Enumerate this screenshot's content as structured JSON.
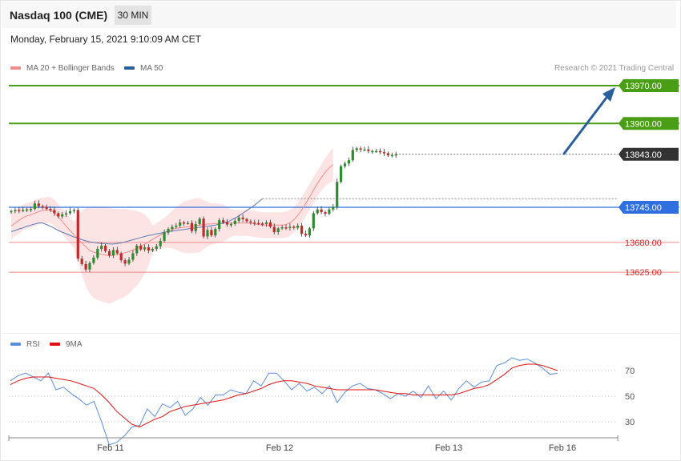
{
  "header": {
    "title": "Nasdaq 100 (CME)",
    "timeframe": "30 MIN"
  },
  "datetime": "Monday, February 15, 2021 9:10:09 AM CET",
  "legend_main": {
    "ma20_label": "MA 20 + Bollinger Bands",
    "ma50_label": "MA 50",
    "ma20_color": "#f48b8b",
    "ma50_color": "#2a5f9e"
  },
  "credit": "Research © 2021 Trading Central",
  "legend_rsi": {
    "rsi_label": "RSI",
    "ma9_label": "9MA",
    "rsi_color": "#5b8de0",
    "ma9_color": "#e01010"
  },
  "chart_data": [
    {
      "type": "line",
      "title": "",
      "x_ticks": [
        "Feb 11",
        "Feb 12",
        "Feb 13",
        "Feb 16"
      ],
      "ylim": [
        13540,
        13985
      ],
      "current_price": 13843.0,
      "levels": [
        {
          "value": 13970.0,
          "label": "13970.00",
          "kind": "resistance",
          "color": "#4a9e16"
        },
        {
          "value": 13900.0,
          "label": "13900.00",
          "kind": "resistance",
          "color": "#4a9e16"
        },
        {
          "value": 13843.0,
          "label": "13843.00",
          "kind": "last",
          "color": "#333333"
        },
        {
          "value": 13745.0,
          "label": "13745.00",
          "kind": "pivot",
          "color": "#2f6fe0"
        },
        {
          "value": 13680.0,
          "label": "13680.00",
          "kind": "support",
          "color": "#e02020"
        },
        {
          "value": 13625.0,
          "label": "13625.00",
          "kind": "support",
          "color": "#e02020"
        }
      ],
      "close": [
        13738,
        13740,
        13739,
        13740,
        13741,
        13742,
        13752,
        13747,
        13746,
        13742,
        13740,
        13734,
        13728,
        13732,
        13734,
        13738,
        13740,
        13650,
        13640,
        13630,
        13642,
        13652,
        13668,
        13674,
        13664,
        13656,
        13666,
        13660,
        13647,
        13641,
        13648,
        13660,
        13674,
        13667,
        13671,
        13665,
        13668,
        13673,
        13683,
        13698,
        13705,
        13709,
        13711,
        13717,
        13716,
        13716,
        13701,
        13714,
        13724,
        13691,
        13703,
        13693,
        13705,
        13721,
        13717,
        13713,
        13714,
        13720,
        13726,
        13723,
        13719,
        13717,
        13716,
        13715,
        13714,
        13717,
        13709,
        13699,
        13706,
        13708,
        13707,
        13709,
        13707,
        13711,
        13696,
        13693,
        13706,
        13734,
        13741,
        13736,
        13733,
        13741,
        13746,
        13792,
        13821,
        13826,
        13832,
        13851,
        13854,
        13852,
        13852,
        13849,
        13849,
        13849,
        13847,
        13845,
        13841,
        13842,
        13843
      ],
      "ma20": [
        13710,
        13716,
        13721,
        13726,
        13729,
        13731,
        13734,
        13737,
        13739,
        13740,
        13740,
        13735,
        13727,
        13719,
        13710,
        13702,
        13694,
        13686,
        13679,
        13672,
        13665,
        13662,
        13660,
        13658,
        13657,
        13655,
        13656,
        13658,
        13659,
        13661,
        13663,
        13666,
        13669,
        13673,
        13677,
        13681,
        13686,
        13690,
        13694,
        13698,
        13701,
        13704,
        13706,
        13707,
        13708,
        13709,
        13710,
        13711,
        13712,
        13713,
        13714,
        13714,
        13715,
        13715,
        13716,
        13716,
        13716,
        13716,
        13716,
        13716,
        13716,
        13715,
        13714,
        13713,
        13712,
        13712,
        13712,
        13712,
        13712,
        13712,
        13713,
        13716,
        13722,
        13730,
        13740,
        13752,
        13764,
        13777,
        13789,
        13800,
        13810,
        13818,
        13824
      ],
      "ma50": [
        13700,
        13702,
        13705,
        13707,
        13710,
        13712,
        13714,
        13716,
        13716,
        13713,
        13710,
        13706,
        13702,
        13699,
        13696,
        13693,
        13690,
        13688,
        13685,
        13683,
        13681,
        13680,
        13679,
        13678,
        13678,
        13677,
        13677,
        13678,
        13679,
        13681,
        13683,
        13685,
        13687,
        13689,
        13691,
        13693,
        13694,
        13696,
        13697,
        13699,
        13700,
        13701,
        13702,
        13703,
        13704,
        13705,
        13706,
        13707,
        13708,
        13709,
        13710,
        13711,
        13712,
        13714,
        13716,
        13718,
        13721,
        13725,
        13729,
        13734,
        13739,
        13744,
        13749,
        13755,
        13761
      ]
    },
    {
      "type": "line",
      "title": "",
      "ylim": [
        14,
        84
      ],
      "y_ticks": [
        70,
        50,
        30
      ],
      "rsi": [
        62,
        66,
        68,
        65,
        62,
        68,
        55,
        57,
        52,
        48,
        43,
        46,
        30,
        12,
        14,
        19,
        26,
        27,
        40,
        34,
        44,
        41,
        46,
        35,
        40,
        49,
        43,
        51,
        51,
        55,
        53,
        52,
        62,
        58,
        68,
        68,
        62,
        55,
        60,
        54,
        57,
        52,
        58,
        45,
        53,
        58,
        60,
        56,
        55,
        52,
        48,
        52,
        50,
        54,
        49,
        58,
        48,
        54,
        47,
        56,
        62,
        57,
        61,
        62,
        74,
        76,
        80,
        78,
        79,
        76,
        72,
        67,
        68
      ],
      "ma9": [
        59,
        62,
        64,
        65,
        65,
        65,
        64,
        63,
        62,
        60,
        58,
        56,
        51,
        45,
        38,
        33,
        28,
        26,
        29,
        32,
        34,
        38,
        40,
        42,
        43,
        44,
        45,
        46,
        47,
        49,
        51,
        52,
        54,
        56,
        59,
        61,
        62,
        62,
        61,
        60,
        58,
        57,
        56,
        55,
        55,
        55,
        55,
        55,
        55,
        54,
        53,
        52,
        52,
        51,
        51,
        51,
        51,
        51,
        51,
        52,
        54,
        56,
        57,
        59,
        63,
        67,
        72,
        74,
        75,
        75,
        74,
        72,
        70
      ]
    }
  ]
}
